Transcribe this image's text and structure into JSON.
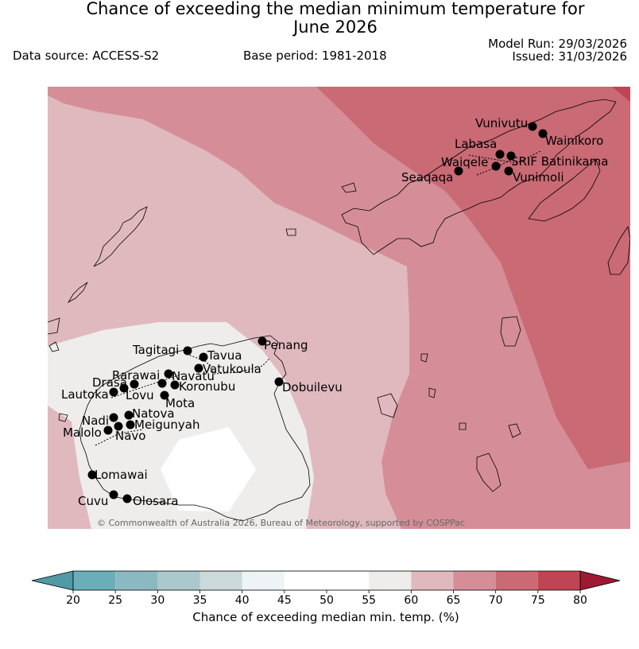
{
  "header": {
    "title_line1": "Chance of exceeding the median minimum temperature for",
    "title_line2": "June 2026",
    "data_source": "Data source: ACCESS-S2",
    "base_period": "Base period: 1981-2018",
    "model_run": "Model Run: 29/03/2026",
    "issued": "Issued: 31/03/2026"
  },
  "map": {
    "credit": "© Commonwealth of Australia 2026, Bureau of Meteorology, supported by COSPPac",
    "stations": [
      {
        "name": "Vunivutu"
      },
      {
        "name": "Wainikoro"
      },
      {
        "name": "Labasa"
      },
      {
        "name": "SRIF Batinikama"
      },
      {
        "name": "Waiqele"
      },
      {
        "name": "Vunimoli"
      },
      {
        "name": "Seaqaqa"
      },
      {
        "name": "Penang"
      },
      {
        "name": "Tagitagi"
      },
      {
        "name": "Tavua"
      },
      {
        "name": "Vatukoula"
      },
      {
        "name": "Rarawai"
      },
      {
        "name": "Navatu"
      },
      {
        "name": "Drasa"
      },
      {
        "name": "Koronubu"
      },
      {
        "name": "Lautoka"
      },
      {
        "name": "Lovu"
      },
      {
        "name": "Dobuilevu"
      },
      {
        "name": "Mota"
      },
      {
        "name": "Natova"
      },
      {
        "name": "Nadi"
      },
      {
        "name": "Meigunyah"
      },
      {
        "name": "Malolo"
      },
      {
        "name": "Navo"
      },
      {
        "name": "Lomawai"
      },
      {
        "name": "Cuvu"
      },
      {
        "name": "Olosara"
      }
    ],
    "colors": {
      "40_45": "#eef3f5",
      "45_55": "#ffffff",
      "55_60": "#eeedec",
      "60_65": "#e0b9bf",
      "65_70": "#d58e98",
      "70_75": "#c96a75",
      "75_80": "#bf4555",
      "gt80": "#9e1a33",
      "lt20": "#4f9aa5"
    }
  },
  "colorbar": {
    "label": "Chance of exceeding median min. temp. (%)",
    "ticks": [
      "20",
      "25",
      "30",
      "35",
      "40",
      "45",
      "50",
      "55",
      "60",
      "65",
      "70",
      "75",
      "80"
    ],
    "colors": [
      "#6aaeba",
      "#8bb9c2",
      "#abc8cc",
      "#cbd9db",
      "#eef3f5",
      "#ffffff",
      "#ffffff",
      "#eeedec",
      "#e0b9bf",
      "#d58e98",
      "#c96a75",
      "#bf4555"
    ],
    "under_color": "#4f9aa5",
    "over_color": "#9e1a33"
  }
}
